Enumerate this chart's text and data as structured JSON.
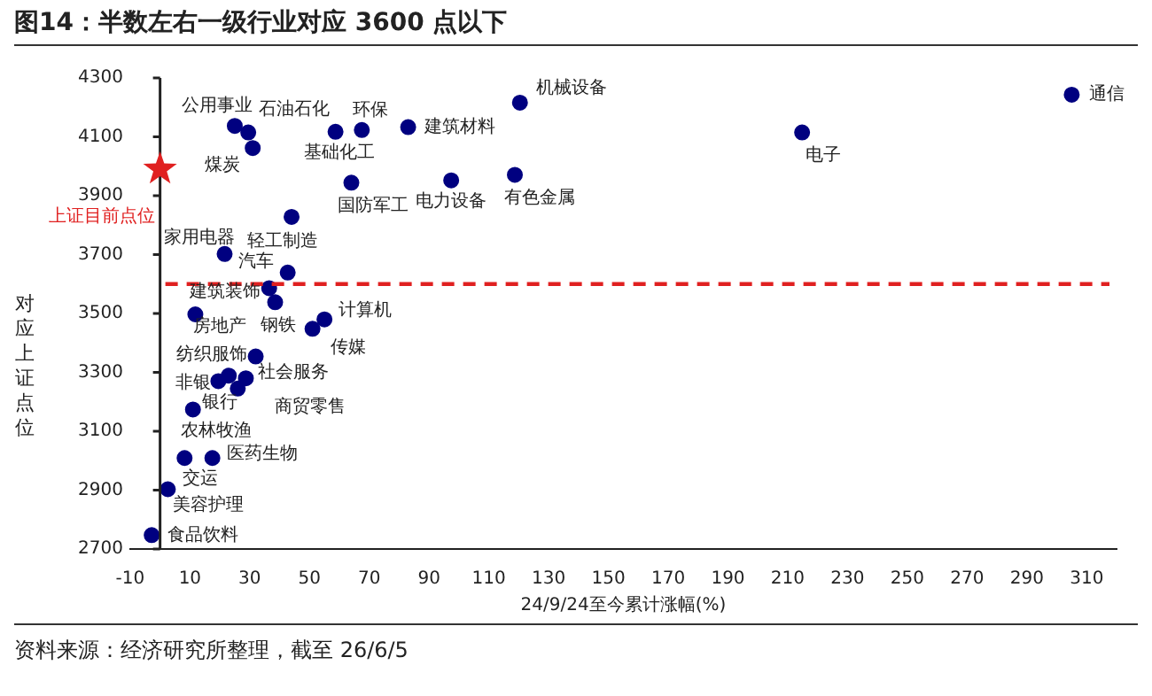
{
  "chart_data": {
    "type": "scatter",
    "title": "图14：半数左右一级行业对应 3600 点以下",
    "xlabel": "24/9/24至今累计涨幅(%)",
    "ylabel": "对应上证点位",
    "series": [
      {
        "color": "#000080",
        "marker": "circle",
        "x": [
          25,
          29.5,
          31,
          67.5,
          58.7,
          83,
          120.4,
          64,
          97.4,
          118.7,
          44,
          21.6,
          42.7,
          36.5,
          38.5,
          11.8,
          55,
          51,
          32,
          28.7,
          19.5,
          26,
          23,
          11,
          8.2,
          17.5,
          2.6,
          -2.8,
          214.8,
          305
        ],
        "values": [
          4137,
          4115,
          4062,
          4123,
          4117,
          4133,
          4216,
          3944,
          3952,
          3971,
          3828,
          3702,
          3639,
          3586,
          3538,
          3497,
          3480,
          3448,
          3354,
          3280,
          3270,
          3245,
          3289,
          3174,
          3009,
          3009,
          2903,
          2747,
          4115,
          4243
        ]
      },
      {
        "color": "#e02020",
        "marker": "star",
        "x": [
          0
        ],
        "values": [
          3990
        ]
      }
    ],
    "xlim": [
      -10,
      320
    ],
    "xticks": [
      -10,
      10,
      30,
      50,
      70,
      90,
      110,
      130,
      150,
      170,
      190,
      210,
      230,
      250,
      270,
      290,
      310
    ],
    "ylim": [
      2700,
      4300
    ],
    "yticks": [
      2700,
      2900,
      3100,
      3300,
      3500,
      3700,
      3900,
      4100,
      4300
    ],
    "grid": false,
    "legend": false,
    "ref_lines": [
      {
        "axis": "y",
        "value": 3600,
        "color": "#e02020",
        "line_style": "dashed"
      }
    ],
    "annotations": [
      {
        "text": "公用事业",
        "x": 25,
        "y": 4137
      },
      {
        "text": "石油石化",
        "x": 29.5,
        "y": 4115
      },
      {
        "text": "煤炭",
        "x": 31,
        "y": 4062
      },
      {
        "text": "环保",
        "x": 67.5,
        "y": 4123
      },
      {
        "text": "基础化工",
        "x": 58.7,
        "y": 4117
      },
      {
        "text": "建筑材料",
        "x": 83,
        "y": 4133
      },
      {
        "text": "机械设备",
        "x": 120.4,
        "y": 4216
      },
      {
        "text": "国防军工",
        "x": 64,
        "y": 3944
      },
      {
        "text": "电力设备",
        "x": 97.4,
        "y": 3952
      },
      {
        "text": "有色金属",
        "x": 118.7,
        "y": 3971
      },
      {
        "text": "轻工制造",
        "x": 44,
        "y": 3828
      },
      {
        "text": "家用电器",
        "x": 21.6,
        "y": 3702
      },
      {
        "text": "汽车",
        "x": 42.7,
        "y": 3639
      },
      {
        "text": "建筑装饰",
        "x": 36.5,
        "y": 3586
      },
      {
        "text": "钢铁",
        "x": 38.5,
        "y": 3538
      },
      {
        "text": "房地产",
        "x": 11.8,
        "y": 3497
      },
      {
        "text": "计算机",
        "x": 55,
        "y": 3480
      },
      {
        "text": "传媒",
        "x": 51,
        "y": 3448
      },
      {
        "text": "纺织服饰",
        "x": 32,
        "y": 3354
      },
      {
        "text": "社会服务",
        "x": 28.7,
        "y": 3280
      },
      {
        "text": "非银",
        "x": 19.5,
        "y": 3270
      },
      {
        "text": "银行",
        "x": 26,
        "y": 3245
      },
      {
        "text": "商贸零售",
        "x": 23,
        "y": 3289
      },
      {
        "text": "农林牧渔",
        "x": 11,
        "y": 3174
      },
      {
        "text": "交运",
        "x": 8.2,
        "y": 3009
      },
      {
        "text": "医药生物",
        "x": 17.5,
        "y": 3009
      },
      {
        "text": "美容护理",
        "x": 2.6,
        "y": 2903
      },
      {
        "text": "食品饮料",
        "x": -2.8,
        "y": 2747
      },
      {
        "text": "电子",
        "x": 214.8,
        "y": 4115
      },
      {
        "text": "通信",
        "x": 305,
        "y": 4243
      },
      {
        "text": "上证目前点位",
        "x": 0,
        "y": 3990
      },
      "资料来源：经济研究所整理，截至 26/6/5"
    ]
  }
}
